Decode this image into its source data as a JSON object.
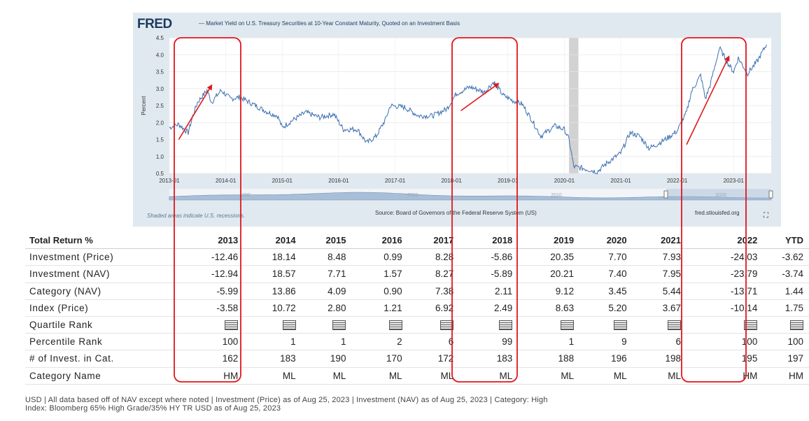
{
  "fred": {
    "logo": "FRED",
    "series_title": "— Market Yield on U.S. Treasury Securities at 10-Year Constant Maturity, Quoted on an Investment Basis",
    "recession_note": "Shaded areas indicate U.S. recessions.",
    "source": "Source: Board of Governors of the Federal Reserve System (US)",
    "url": "fred.stlouisfed.org",
    "expand_icon": "expand-icon",
    "line_color": "#3d6fb0",
    "recession_color": "#d2d2d2",
    "overview_labels": [
      "1990",
      "2000",
      "2010",
      "2020"
    ]
  },
  "chart_data": {
    "type": "line",
    "title": "Market Yield on U.S. Treasury Securities at 10-Year Constant Maturity, Quoted on an Investment Basis",
    "ylabel": "Percent",
    "xlabel": "",
    "ylim": [
      0.5,
      4.5
    ],
    "yticks": [
      "0.5",
      "1.0",
      "1.5",
      "2.0",
      "2.5",
      "3.0",
      "3.5",
      "4.0",
      "4.5"
    ],
    "xticks": [
      "2013-01",
      "2014-01",
      "2015-01",
      "2016-01",
      "2017-01",
      "2018-01",
      "2019-01",
      "2020-01",
      "2021-01",
      "2022-01",
      "2023-01"
    ],
    "grid": true,
    "recession": {
      "start": "2020-02",
      "end": "2020-04"
    },
    "series": [
      {
        "x": [
          "2013-01",
          "2013-03",
          "2013-05",
          "2013-06",
          "2013-07",
          "2013-09",
          "2013-10",
          "2013-12",
          "2014-02",
          "2014-04",
          "2014-06",
          "2014-08",
          "2014-10",
          "2014-12",
          "2015-01",
          "2015-03",
          "2015-06",
          "2015-09",
          "2015-12",
          "2016-02",
          "2016-05",
          "2016-07",
          "2016-09",
          "2016-11",
          "2016-12",
          "2017-03",
          "2017-06",
          "2017-09",
          "2017-12",
          "2018-02",
          "2018-05",
          "2018-08",
          "2018-10",
          "2018-12",
          "2019-02",
          "2019-04",
          "2019-06",
          "2019-08",
          "2019-09",
          "2019-11",
          "2020-01",
          "2020-02",
          "2020-03",
          "2020-05",
          "2020-08",
          "2020-10",
          "2021-01",
          "2021-03",
          "2021-05",
          "2021-07",
          "2021-08",
          "2021-11",
          "2022-01",
          "2022-03",
          "2022-04",
          "2022-06",
          "2022-07",
          "2022-08",
          "2022-10",
          "2022-12",
          "2023-01",
          "2023-02",
          "2023-04",
          "2023-06",
          "2023-08"
        ],
        "y": [
          1.85,
          1.95,
          1.7,
          2.2,
          2.6,
          2.95,
          2.6,
          2.95,
          2.7,
          2.75,
          2.6,
          2.45,
          2.3,
          2.2,
          1.85,
          2.05,
          2.3,
          2.15,
          2.25,
          1.8,
          1.8,
          1.4,
          1.6,
          2.1,
          2.5,
          2.45,
          2.2,
          2.2,
          2.4,
          2.85,
          3.05,
          2.9,
          3.2,
          2.8,
          2.65,
          2.55,
          2.1,
          1.6,
          1.7,
          1.9,
          1.8,
          1.5,
          0.7,
          0.65,
          0.55,
          0.8,
          1.1,
          1.7,
          1.6,
          1.25,
          1.3,
          1.55,
          1.75,
          2.3,
          2.9,
          3.4,
          2.7,
          3.1,
          4.2,
          3.7,
          3.5,
          3.9,
          3.45,
          3.8,
          4.3
        ]
      }
    ]
  },
  "table": {
    "header_label": "Total Return %",
    "years": [
      "2013",
      "2014",
      "2015",
      "2016",
      "2017",
      "2018",
      "2019",
      "2020",
      "2021",
      "2022",
      "YTD"
    ],
    "rows": [
      {
        "label": "Investment (Price)",
        "values": [
          "-12.46",
          "18.14",
          "8.48",
          "0.99",
          "8.28",
          "-5.86",
          "20.35",
          "7.70",
          "7.93",
          "-24.03",
          "-3.62"
        ]
      },
      {
        "label": "Investment (NAV)",
        "values": [
          "-12.94",
          "18.57",
          "7.71",
          "1.57",
          "8.27",
          "-5.89",
          "20.21",
          "7.40",
          "7.95",
          "-23.79",
          "-3.74"
        ]
      },
      {
        "label": "Category (NAV)",
        "values": [
          "-5.99",
          "13.86",
          "4.09",
          "0.90",
          "7.38",
          "2.11",
          "9.12",
          "3.45",
          "5.44",
          "-13.71",
          "1.44"
        ]
      },
      {
        "label": "Index (Price)",
        "values": [
          "-3.58",
          "10.72",
          "2.80",
          "1.21",
          "6.92",
          "2.49",
          "8.63",
          "5.20",
          "3.67",
          "-10.14",
          "1.75"
        ]
      },
      {
        "label": "Quartile Rank",
        "icon": "quartile-rank-icon",
        "values": []
      },
      {
        "label": "Percentile Rank",
        "values": [
          "100",
          "1",
          "1",
          "2",
          "6",
          "99",
          "1",
          "9",
          "6",
          "100",
          "100"
        ]
      },
      {
        "label": "# of Invest. in Cat.",
        "values": [
          "162",
          "183",
          "190",
          "170",
          "172",
          "183",
          "188",
          "196",
          "198",
          "195",
          "197"
        ]
      },
      {
        "label": "Category Name",
        "values": [
          "HM",
          "ML",
          "ML",
          "ML",
          "ML",
          "ML",
          "ML",
          "ML",
          "ML",
          "HM",
          "HM"
        ]
      }
    ]
  },
  "footnote": {
    "line1": "USD | All data based off of NAV except where noted | Investment (Price) as of Aug 25, 2023 | Investment (NAV) as of Aug 25, 2023 | Category: High",
    "line2": "Index: Bloomberg 65% High Grade/35% HY TR USD as of Aug 25, 2023"
  },
  "annotations": {
    "color": "#e0161c",
    "highlighted_years": [
      "2013",
      "2018",
      "2022"
    ],
    "arrow_spans": [
      {
        "from": "2013-03",
        "to": "2013-10",
        "y_from": 1.5,
        "y_to": 3.1
      },
      {
        "from": "2018-03",
        "to": "2018-11",
        "y_from": 2.35,
        "y_to": 3.15
      },
      {
        "from": "2022-03",
        "to": "2022-12",
        "y_from": 1.35,
        "y_to": 3.95
      }
    ]
  }
}
